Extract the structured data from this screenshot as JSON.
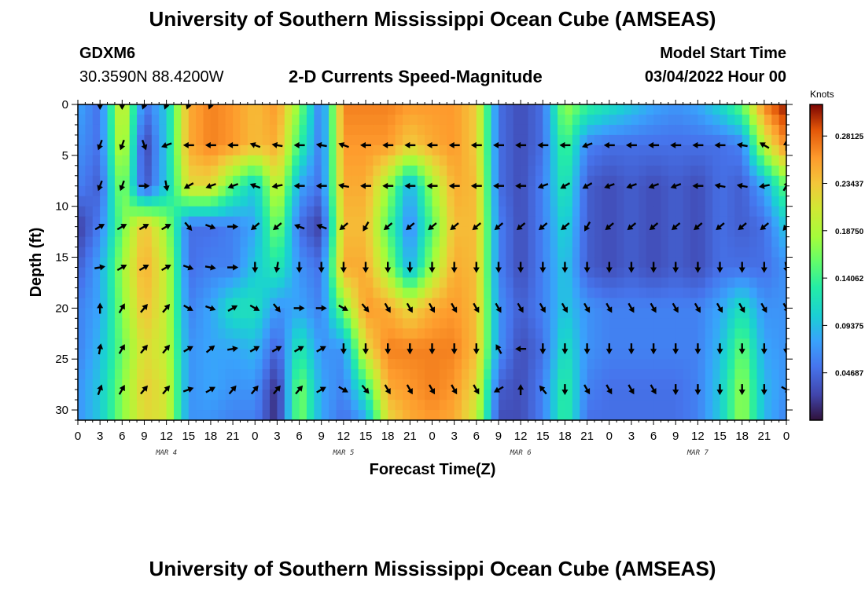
{
  "header": {
    "title": "University of Southern Mississippi Ocean Cube (AMSEAS)",
    "station_id": "GDXM6",
    "coordinates": "30.3590N  88.4200W",
    "model_start_label": "Model Start Time",
    "model_start_value": "03/04/2022 Hour 00",
    "footer_title": "University of Southern Mississippi Ocean Cube (AMSEAS)"
  },
  "chart_data": {
    "type": "heatmap",
    "title": "2-D Currents Speed-Magnitude",
    "xlabel": "Forecast Time(Z)",
    "ylabel": "Depth (ft)",
    "x_range": [
      0,
      96
    ],
    "y_range": [
      0,
      31
    ],
    "x_ticks": [
      {
        "pos": 0,
        "label": "0"
      },
      {
        "pos": 3,
        "label": "3"
      },
      {
        "pos": 6,
        "label": "6"
      },
      {
        "pos": 9,
        "label": "9"
      },
      {
        "pos": 12,
        "label": "12"
      },
      {
        "pos": 15,
        "label": "15"
      },
      {
        "pos": 18,
        "label": "18"
      },
      {
        "pos": 21,
        "label": "21"
      },
      {
        "pos": 24,
        "label": "0"
      },
      {
        "pos": 27,
        "label": "3"
      },
      {
        "pos": 30,
        "label": "6"
      },
      {
        "pos": 33,
        "label": "9"
      },
      {
        "pos": 36,
        "label": "12"
      },
      {
        "pos": 39,
        "label": "15"
      },
      {
        "pos": 42,
        "label": "18"
      },
      {
        "pos": 45,
        "label": "21"
      },
      {
        "pos": 48,
        "label": "0"
      },
      {
        "pos": 51,
        "label": "3"
      },
      {
        "pos": 54,
        "label": "6"
      },
      {
        "pos": 57,
        "label": "9"
      },
      {
        "pos": 60,
        "label": "12"
      },
      {
        "pos": 63,
        "label": "15"
      },
      {
        "pos": 66,
        "label": "18"
      },
      {
        "pos": 69,
        "label": "21"
      },
      {
        "pos": 72,
        "label": "0"
      },
      {
        "pos": 75,
        "label": "3"
      },
      {
        "pos": 78,
        "label": "6"
      },
      {
        "pos": 81,
        "label": "9"
      },
      {
        "pos": 84,
        "label": "12"
      },
      {
        "pos": 87,
        "label": "15"
      },
      {
        "pos": 90,
        "label": "18"
      },
      {
        "pos": 93,
        "label": "21"
      },
      {
        "pos": 96,
        "label": "0"
      }
    ],
    "day_labels": [
      {
        "pos": 12,
        "label": "MAR 4"
      },
      {
        "pos": 36,
        "label": "MAR 5"
      },
      {
        "pos": 60,
        "label": "MAR 6"
      },
      {
        "pos": 84,
        "label": "MAR 7"
      }
    ],
    "y_ticks": [
      0,
      5,
      10,
      15,
      20,
      25,
      30
    ],
    "colorbar": {
      "title": "Knots",
      "min": 0,
      "max": 0.3125,
      "labels": [
        "0.28125",
        "0.23437",
        "0.18750",
        "0.14062",
        "0.09375",
        "0.04687"
      ],
      "values": [
        0.28125,
        0.234375,
        0.1875,
        0.140625,
        0.09375,
        0.046875
      ]
    },
    "speed_grid": {
      "x": [
        0,
        3,
        6,
        9,
        12,
        15,
        18,
        21,
        24,
        27,
        30,
        33,
        36,
        39,
        42,
        45,
        48,
        51,
        54,
        57,
        60,
        63,
        66,
        69,
        72,
        75,
        78,
        81,
        84,
        87,
        90,
        93,
        96
      ],
      "depths": [
        0,
        4,
        8,
        12,
        16,
        20,
        24,
        28,
        31
      ],
      "rows": [
        [
          0.08,
          0.05,
          0.22,
          0.05,
          0.1,
          0.25,
          0.27,
          0.26,
          0.24,
          0.26,
          0.17,
          0.05,
          0.27,
          0.27,
          0.27,
          0.26,
          0.26,
          0.26,
          0.23,
          0.05,
          0.03,
          0.05,
          0.18,
          0.14,
          0.12,
          0.1,
          0.08,
          0.07,
          0.08,
          0.11,
          0.16,
          0.27,
          0.31
        ],
        [
          0.07,
          0.05,
          0.21,
          0.02,
          0.1,
          0.25,
          0.27,
          0.26,
          0.24,
          0.25,
          0.14,
          0.05,
          0.26,
          0.26,
          0.26,
          0.23,
          0.25,
          0.26,
          0.23,
          0.05,
          0.03,
          0.05,
          0.15,
          0.06,
          0.05,
          0.05,
          0.05,
          0.05,
          0.05,
          0.05,
          0.06,
          0.2,
          0.27
        ],
        [
          0.06,
          0.04,
          0.18,
          0.03,
          0.1,
          0.22,
          0.22,
          0.15,
          0.1,
          0.21,
          0.08,
          0.05,
          0.25,
          0.25,
          0.18,
          0.08,
          0.18,
          0.25,
          0.24,
          0.05,
          0.03,
          0.06,
          0.13,
          0.04,
          0.03,
          0.04,
          0.03,
          0.04,
          0.03,
          0.05,
          0.04,
          0.08,
          0.16
        ],
        [
          0.02,
          0.06,
          0.16,
          0.24,
          0.18,
          0.05,
          0.05,
          0.06,
          0.08,
          0.17,
          0.05,
          0.02,
          0.24,
          0.24,
          0.15,
          0.06,
          0.15,
          0.24,
          0.24,
          0.06,
          0.03,
          0.06,
          0.11,
          0.04,
          0.03,
          0.04,
          0.03,
          0.04,
          0.03,
          0.05,
          0.04,
          0.05,
          0.1
        ],
        [
          0.04,
          0.08,
          0.18,
          0.25,
          0.2,
          0.05,
          0.06,
          0.06,
          0.1,
          0.13,
          0.07,
          0.05,
          0.25,
          0.25,
          0.18,
          0.08,
          0.18,
          0.25,
          0.24,
          0.06,
          0.03,
          0.06,
          0.1,
          0.04,
          0.03,
          0.04,
          0.03,
          0.04,
          0.03,
          0.05,
          0.05,
          0.05,
          0.07
        ],
        [
          0.06,
          0.08,
          0.17,
          0.24,
          0.2,
          0.06,
          0.08,
          0.12,
          0.12,
          0.07,
          0.08,
          0.06,
          0.17,
          0.26,
          0.25,
          0.22,
          0.25,
          0.26,
          0.24,
          0.07,
          0.04,
          0.06,
          0.1,
          0.07,
          0.06,
          0.06,
          0.06,
          0.06,
          0.06,
          0.08,
          0.12,
          0.07,
          0.07
        ],
        [
          0.06,
          0.09,
          0.16,
          0.22,
          0.2,
          0.07,
          0.08,
          0.08,
          0.09,
          0.04,
          0.13,
          0.07,
          0.07,
          0.22,
          0.27,
          0.27,
          0.27,
          0.27,
          0.24,
          0.07,
          0.03,
          0.05,
          0.12,
          0.07,
          0.06,
          0.06,
          0.06,
          0.06,
          0.06,
          0.09,
          0.16,
          0.08,
          0.07
        ],
        [
          0.07,
          0.1,
          0.17,
          0.23,
          0.21,
          0.07,
          0.08,
          0.07,
          0.07,
          0.01,
          0.17,
          0.08,
          0.06,
          0.13,
          0.25,
          0.26,
          0.27,
          0.26,
          0.22,
          0.04,
          0.03,
          0.06,
          0.14,
          0.06,
          0.05,
          0.05,
          0.05,
          0.05,
          0.06,
          0.1,
          0.18,
          0.09,
          0.07
        ],
        [
          0.07,
          0.1,
          0.17,
          0.22,
          0.21,
          0.07,
          0.07,
          0.06,
          0.06,
          0.01,
          0.17,
          0.08,
          0.05,
          0.08,
          0.22,
          0.25,
          0.26,
          0.25,
          0.2,
          0.03,
          0.03,
          0.06,
          0.14,
          0.05,
          0.05,
          0.05,
          0.05,
          0.05,
          0.06,
          0.1,
          0.18,
          0.09,
          0.06
        ]
      ]
    },
    "vectors": {
      "x": [
        3,
        6,
        9,
        12,
        15,
        18,
        21,
        24,
        27,
        30,
        33,
        36,
        39,
        42,
        45,
        48,
        51,
        54,
        57,
        60,
        63,
        66,
        69,
        72,
        75,
        78,
        81,
        84,
        87,
        90,
        93,
        96
      ],
      "depths": [
        0,
        4,
        8,
        12,
        16,
        20,
        24,
        28
      ],
      "angles": [
        [
          180,
          180,
          200,
          200,
          200,
          200,
          null,
          null,
          null,
          null,
          null,
          null,
          null,
          null,
          null,
          null,
          null,
          null,
          null,
          null,
          null,
          null,
          null,
          null,
          null,
          null,
          null,
          null,
          null,
          null,
          null,
          null
        ],
        [
          200,
          200,
          160,
          250,
          270,
          270,
          270,
          290,
          280,
          270,
          280,
          290,
          270,
          270,
          270,
          270,
          270,
          270,
          270,
          270,
          270,
          270,
          250,
          270,
          270,
          270,
          270,
          270,
          270,
          280,
          300,
          0
        ],
        [
          200,
          200,
          90,
          170,
          240,
          250,
          250,
          290,
          260,
          270,
          270,
          280,
          270,
          270,
          270,
          270,
          270,
          270,
          270,
          270,
          250,
          240,
          240,
          250,
          250,
          250,
          250,
          270,
          280,
          280,
          260,
          30
        ],
        [
          60,
          60,
          60,
          60,
          140,
          110,
          90,
          230,
          230,
          290,
          290,
          230,
          210,
          230,
          230,
          230,
          230,
          230,
          230,
          230,
          230,
          230,
          210,
          230,
          230,
          230,
          230,
          230,
          230,
          230,
          230,
          220
        ],
        [
          80,
          60,
          60,
          60,
          110,
          100,
          90,
          180,
          190,
          180,
          180,
          180,
          180,
          180,
          180,
          180,
          180,
          180,
          180,
          180,
          180,
          180,
          180,
          180,
          180,
          180,
          180,
          180,
          180,
          180,
          180,
          170
        ],
        [
          0,
          30,
          40,
          40,
          120,
          110,
          60,
          120,
          140,
          90,
          90,
          120,
          140,
          150,
          150,
          150,
          150,
          150,
          150,
          150,
          150,
          150,
          150,
          150,
          150,
          150,
          150,
          150,
          150,
          150,
          150,
          150
        ],
        [
          10,
          30,
          40,
          40,
          60,
          50,
          80,
          60,
          60,
          60,
          60,
          180,
          180,
          180,
          180,
          180,
          180,
          180,
          330,
          270,
          180,
          180,
          180,
          180,
          180,
          180,
          180,
          180,
          180,
          180,
          180,
          180
        ],
        [
          20,
          30,
          40,
          40,
          70,
          60,
          40,
          40,
          40,
          40,
          60,
          120,
          140,
          150,
          150,
          150,
          150,
          150,
          240,
          0,
          320,
          180,
          150,
          150,
          150,
          150,
          180,
          180,
          180,
          180,
          180,
          120
        ]
      ]
    }
  }
}
